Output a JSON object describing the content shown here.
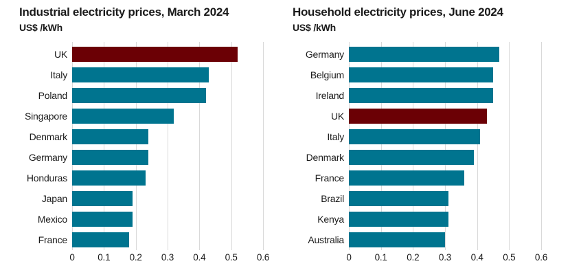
{
  "colors": {
    "bar_teal": "#00748F",
    "bar_highlight_maroon": "#6B0005",
    "gridline": "#D9D9D9",
    "text": "#1A1A1A",
    "background": "#FFFFFF"
  },
  "chart_data": [
    {
      "type": "bar",
      "orientation": "horizontal",
      "title": "Industrial electricity prices, March 2024",
      "subtitle": "US$ /kWh",
      "categories": [
        "UK",
        "Italy",
        "Poland",
        "Singapore",
        "Denmark",
        "Germany",
        "Honduras",
        "Japan",
        "Mexico",
        "France"
      ],
      "values": [
        0.52,
        0.43,
        0.42,
        0.32,
        0.24,
        0.24,
        0.23,
        0.19,
        0.19,
        0.18
      ],
      "highlight_category": "UK",
      "bar_color": "#00748F",
      "highlight_color": "#6B0005",
      "xlim": [
        0,
        0.6
      ],
      "x_ticks": [
        "0",
        "0.1",
        "0.2",
        "0.3",
        "0.4",
        "0.5",
        "0.6"
      ],
      "grid": true,
      "legend": "none"
    },
    {
      "type": "bar",
      "orientation": "horizontal",
      "title": "Household electricity prices, June 2024",
      "subtitle": "US$ /kWh",
      "categories": [
        "Germany",
        "Belgium",
        "Ireland",
        "UK",
        "Italy",
        "Denmark",
        "France",
        "Brazil",
        "Kenya",
        "Australia"
      ],
      "values": [
        0.47,
        0.45,
        0.45,
        0.43,
        0.41,
        0.39,
        0.36,
        0.31,
        0.31,
        0.3
      ],
      "highlight_category": "UK",
      "bar_color": "#00748F",
      "highlight_color": "#6B0005",
      "xlim": [
        0,
        0.6
      ],
      "x_ticks": [
        "0",
        "0.1",
        "0.2",
        "0.3",
        "0.4",
        "0.5",
        "0.6"
      ],
      "grid": true,
      "legend": "none"
    }
  ]
}
